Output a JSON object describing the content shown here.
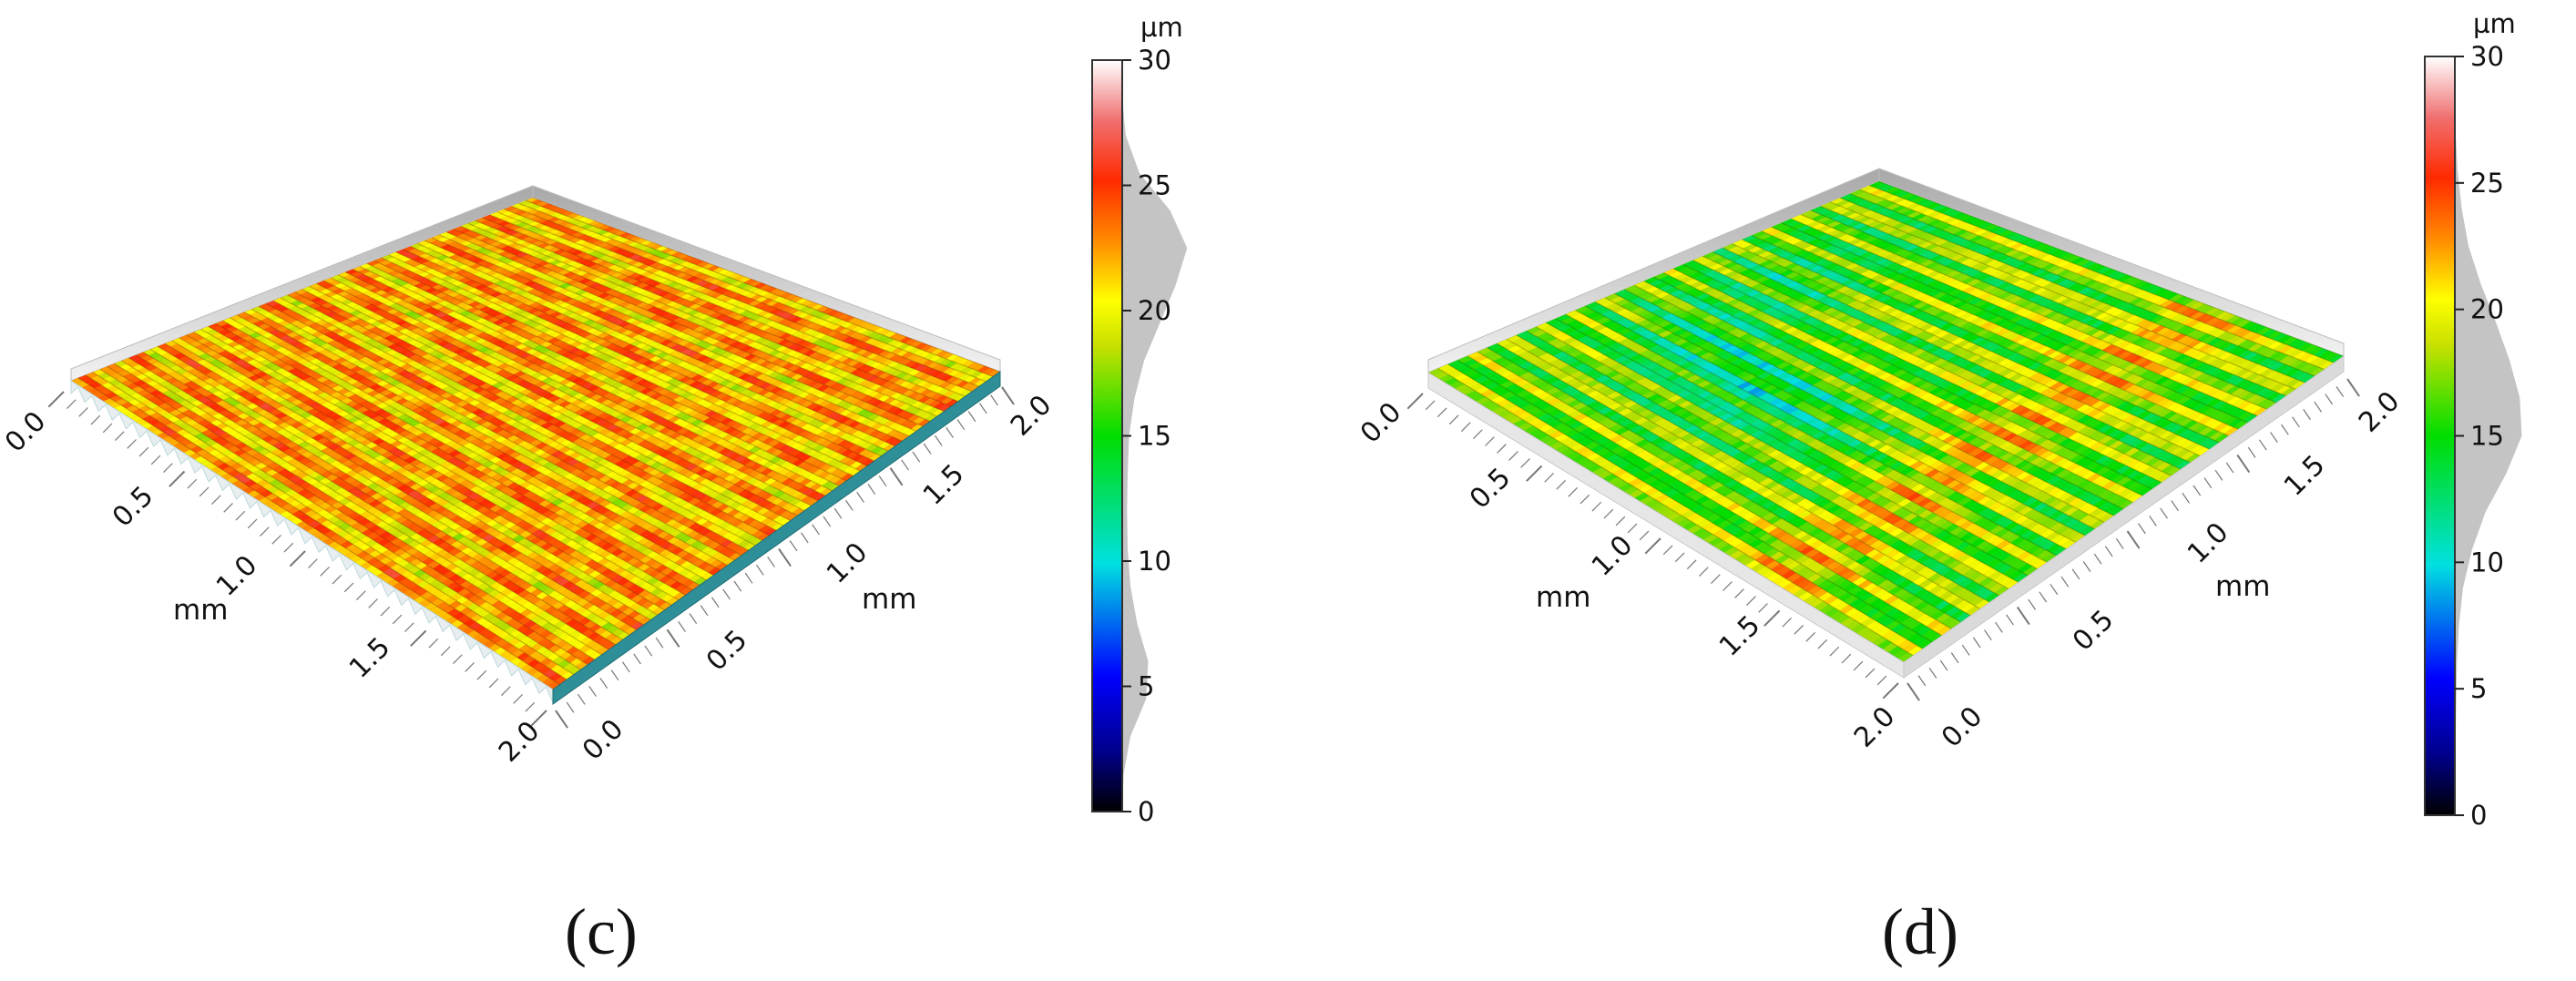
{
  "chart_data": [
    {
      "type": "surface3d",
      "panel_label": "(c)",
      "x_axis": {
        "label": "mm",
        "ticks": [
          "0.0",
          "0.5",
          "1.0",
          "1.5",
          "2.0"
        ],
        "range": [
          0,
          2.0
        ]
      },
      "y_axis": {
        "label": "mm",
        "ticks": [
          "0.0",
          "0.5",
          "1.0",
          "1.5",
          "2.0"
        ],
        "range": [
          0,
          2.0
        ]
      },
      "colorbar": {
        "unit": "µm",
        "ticks": [
          "0",
          "5",
          "10",
          "15",
          "20",
          "25",
          "30"
        ],
        "range": [
          0,
          30
        ]
      },
      "height_histogram": {
        "z": [
          0,
          1.5,
          3,
          4.5,
          6,
          7.5,
          9,
          10.5,
          12,
          13.5,
          15,
          16.5,
          18,
          19.5,
          21,
          22.5,
          24,
          25.5,
          27,
          28.5,
          30
        ],
        "density": [
          0,
          0.02,
          0.12,
          0.35,
          0.38,
          0.22,
          0.12,
          0.08,
          0.07,
          0.08,
          0.1,
          0.18,
          0.32,
          0.55,
          0.78,
          0.95,
          0.7,
          0.25,
          0.05,
          0,
          0
        ]
      },
      "surface_color_range": [
        18,
        25
      ]
    },
    {
      "type": "surface3d",
      "panel_label": "(d)",
      "x_axis": {
        "label": "mm",
        "ticks": [
          "0.0",
          "0.5",
          "1.0",
          "1.5",
          "2.0"
        ],
        "range": [
          0,
          2.0
        ]
      },
      "y_axis": {
        "label": "mm",
        "ticks": [
          "0.0",
          "0.5",
          "1.0",
          "1.5",
          "2.0"
        ],
        "range": [
          0,
          2.0
        ]
      },
      "colorbar": {
        "unit": "µm",
        "ticks": [
          "0",
          "5",
          "10",
          "15",
          "20",
          "25",
          "30"
        ],
        "range": [
          0,
          30
        ]
      },
      "height_histogram": {
        "z": [
          0,
          1.5,
          3,
          4.5,
          6,
          7.5,
          9,
          10.5,
          12,
          13.5,
          15,
          16.5,
          18,
          19.5,
          21,
          22.5,
          24,
          25.5,
          27,
          28.5,
          30
        ],
        "density": [
          0,
          0,
          0.01,
          0.02,
          0.03,
          0.06,
          0.12,
          0.25,
          0.45,
          0.75,
          0.98,
          0.95,
          0.8,
          0.6,
          0.38,
          0.2,
          0.1,
          0.04,
          0.01,
          0,
          0
        ]
      },
      "surface_color_range": [
        10,
        25
      ]
    }
  ]
}
